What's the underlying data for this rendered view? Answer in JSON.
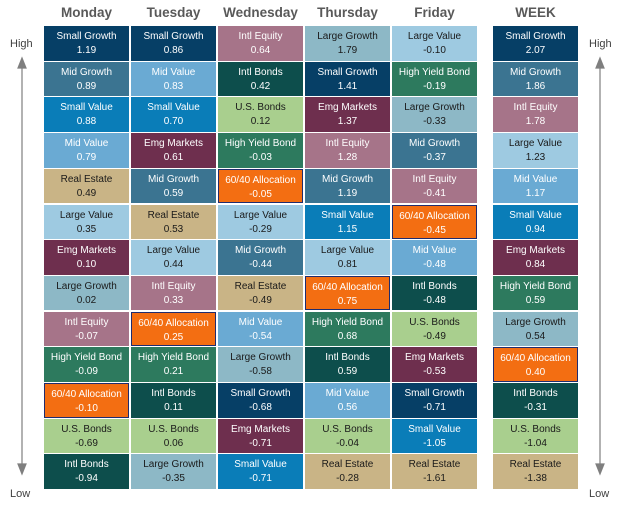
{
  "chart_data": {
    "type": "table",
    "side_labels": {
      "high": "High",
      "low": "Low"
    },
    "columns": [
      {
        "day": "Monday",
        "rows": [
          [
            "Small Growth",
            "1.19"
          ],
          [
            "Mid Growth",
            "0.89"
          ],
          [
            "Small Value",
            "0.88"
          ],
          [
            "Mid Value",
            "0.79"
          ],
          [
            "Real Estate",
            "0.49"
          ],
          [
            "Large Value",
            "0.35"
          ],
          [
            "Emg Markets",
            "0.10"
          ],
          [
            "Large Growth",
            "0.02"
          ],
          [
            "Intl Equity",
            "-0.07"
          ],
          [
            "High Yield Bond",
            "-0.09"
          ],
          [
            "60/40 Allocation",
            "-0.10"
          ],
          [
            "U.S. Bonds",
            "-0.69"
          ],
          [
            "Intl Bonds",
            "-0.94"
          ]
        ]
      },
      {
        "day": "Tuesday",
        "rows": [
          [
            "Small Growth",
            "0.86"
          ],
          [
            "Mid Value",
            "0.83"
          ],
          [
            "Small Value",
            "0.70"
          ],
          [
            "Emg Markets",
            "0.61"
          ],
          [
            "Mid Growth",
            "0.59"
          ],
          [
            "Real Estate",
            "0.53"
          ],
          [
            "Large Value",
            "0.44"
          ],
          [
            "Intl Equity",
            "0.33"
          ],
          [
            "60/40 Allocation",
            "0.25"
          ],
          [
            "High Yield Bond",
            "0.21"
          ],
          [
            "Intl Bonds",
            "0.11"
          ],
          [
            "U.S. Bonds",
            "0.06"
          ],
          [
            "Large Growth",
            "-0.35"
          ]
        ]
      },
      {
        "day": "Wednesday",
        "rows": [
          [
            "Intl Equity",
            "0.64"
          ],
          [
            "Intl Bonds",
            "0.42"
          ],
          [
            "U.S. Bonds",
            "0.12"
          ],
          [
            "High Yield Bond",
            "-0.03"
          ],
          [
            "60/40 Allocation",
            "-0.05"
          ],
          [
            "Large Value",
            "-0.29"
          ],
          [
            "Mid Growth",
            "-0.44"
          ],
          [
            "Real Estate",
            "-0.49"
          ],
          [
            "Mid Value",
            "-0.54"
          ],
          [
            "Large Growth",
            "-0.58"
          ],
          [
            "Small Growth",
            "-0.68"
          ],
          [
            "Emg Markets",
            "-0.71"
          ],
          [
            "Small Value",
            "-0.71"
          ]
        ]
      },
      {
        "day": "Thursday",
        "rows": [
          [
            "Large Growth",
            "1.79"
          ],
          [
            "Small Growth",
            "1.41"
          ],
          [
            "Emg Markets",
            "1.37"
          ],
          [
            "Intl Equity",
            "1.28"
          ],
          [
            "Mid Growth",
            "1.19"
          ],
          [
            "Small Value",
            "1.15"
          ],
          [
            "Large Value",
            "0.81"
          ],
          [
            "60/40 Allocation",
            "0.75"
          ],
          [
            "High Yield Bond",
            "0.68"
          ],
          [
            "Intl Bonds",
            "0.59"
          ],
          [
            "Mid Value",
            "0.56"
          ],
          [
            "U.S. Bonds",
            "-0.04"
          ],
          [
            "Real Estate",
            "-0.28"
          ]
        ]
      },
      {
        "day": "Friday",
        "rows": [
          [
            "Large Value",
            "-0.10"
          ],
          [
            "High Yield Bond",
            "-0.19"
          ],
          [
            "Large Growth",
            "-0.33"
          ],
          [
            "Mid Growth",
            "-0.37"
          ],
          [
            "Intl Equity",
            "-0.41"
          ],
          [
            "60/40 Allocation",
            "-0.45"
          ],
          [
            "Mid Value",
            "-0.48"
          ],
          [
            "Intl Bonds",
            "-0.48"
          ],
          [
            "U.S. Bonds",
            "-0.49"
          ],
          [
            "Emg Markets",
            "-0.53"
          ],
          [
            "Small Growth",
            "-0.71"
          ],
          [
            "Small Value",
            "-1.05"
          ],
          [
            "Real Estate",
            "-1.61"
          ]
        ]
      },
      {
        "day": "WEEK",
        "rows": [
          [
            "Small Growth",
            "2.07"
          ],
          [
            "Mid Growth",
            "1.86"
          ],
          [
            "Intl Equity",
            "1.78"
          ],
          [
            "Large Value",
            "1.23"
          ],
          [
            "Mid Value",
            "1.17"
          ],
          [
            "Small Value",
            "0.94"
          ],
          [
            "Emg Markets",
            "0.84"
          ],
          [
            "High Yield Bond",
            "0.59"
          ],
          [
            "Large Growth",
            "0.54"
          ],
          [
            "60/40 Allocation",
            "0.40"
          ],
          [
            "Intl Bonds",
            "-0.31"
          ],
          [
            "U.S. Bonds",
            "-1.04"
          ],
          [
            "Real Estate",
            "-1.38"
          ]
        ]
      }
    ],
    "asset_colors": {
      "Small Growth": "#063f66",
      "Mid Growth": "#3b7491",
      "Small Value": "#0a7db8",
      "Mid Value": "#6aaad3",
      "Large Value": "#9ecae1",
      "Large Growth": "#8db8c6",
      "Real Estate": "#c9b486",
      "Emg Markets": "#6e2f4e",
      "Intl Equity": "#a67489",
      "Intl Bonds": "#0d4e4c",
      "High Yield Bond": "#2d7a5e",
      "U.S. Bonds": "#a9cf8e",
      "60/40 Allocation": "#f36e12"
    },
    "dark_text_assets": [
      "Real Estate",
      "Large Value",
      "Large Growth",
      "U.S. Bonds"
    ]
  }
}
